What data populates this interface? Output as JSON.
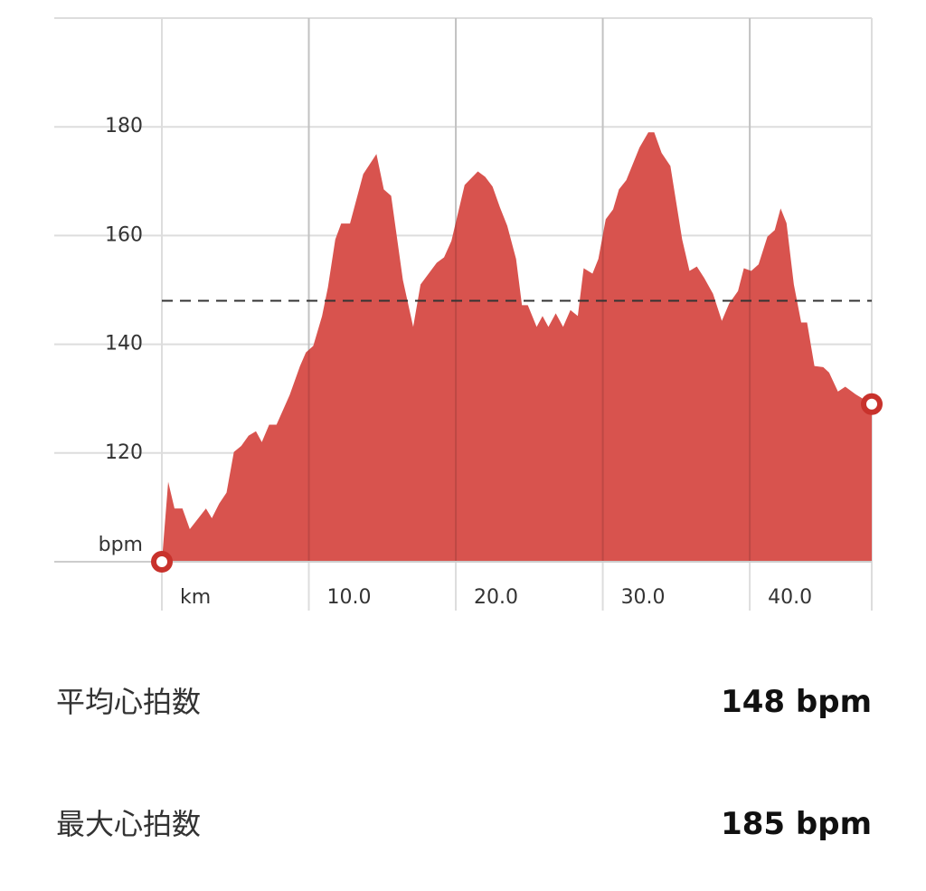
{
  "chart_data": {
    "type": "area",
    "series": [
      {
        "color": "#d8534e",
        "x": [
          0,
          0.43,
          0.86,
          1.4,
          1.9,
          3.0,
          3.4,
          3.9,
          4.4,
          4.9,
          5.4,
          5.9,
          6.4,
          6.8,
          7.3,
          7.8,
          8.7,
          9.4,
          9.8,
          10.3,
          10.9,
          11.3,
          11.8,
          12.2,
          12.8,
          13.7,
          14.6,
          15.1,
          15.6,
          16.4,
          17.1,
          17.6,
          18.7,
          19.2,
          19.7,
          20.6,
          21.5,
          22.0,
          22.5,
          23.0,
          23.5,
          24.1,
          24.5,
          24.9,
          25.5,
          25.9,
          26.3,
          26.8,
          27.3,
          27.8,
          28.3,
          28.7,
          29.3,
          29.7,
          30.2,
          30.7,
          31.1,
          31.6,
          32.5,
          33.1,
          33.5,
          34.0,
          34.6,
          35.4,
          35.9,
          36.4,
          36.9,
          37.5,
          38.1,
          38.6,
          39.2,
          39.6,
          40.1,
          40.6,
          41.2,
          41.7,
          42.1,
          42.5,
          43.0,
          43.5,
          43.9,
          44.4,
          45.0,
          45.4,
          46.0,
          46.5,
          47.2,
          48.3
        ],
        "values": [
          100,
          114.7,
          109.8,
          109.8,
          106,
          109.8,
          108,
          110.7,
          112.7,
          120.2,
          121.3,
          123.2,
          124,
          122,
          125.2,
          125.2,
          130.7,
          136,
          138.5,
          139.7,
          145.2,
          150.5,
          159.3,
          162.2,
          162.2,
          171.3,
          175,
          168.5,
          167.3,
          151.8,
          143.2,
          151,
          155,
          156,
          159,
          169.3,
          171.8,
          170.8,
          169,
          165.2,
          161.8,
          155.7,
          147.2,
          147.2,
          143.2,
          145.2,
          143.2,
          145.7,
          143.2,
          146.3,
          145.2,
          154,
          153,
          155.7,
          163,
          164.8,
          168.5,
          170.2,
          176.2,
          179,
          179,
          175.2,
          172.8,
          159.3,
          153.5,
          154.3,
          152.2,
          149.3,
          144.3,
          147.5,
          149.8,
          154,
          153.5,
          154.7,
          159.8,
          161,
          165,
          162.3,
          151,
          144,
          144,
          136,
          135.8,
          134.8,
          131.3,
          132.2,
          130.8,
          129
        ]
      }
    ],
    "average": 148,
    "xlim": [
      0,
      48.3
    ],
    "ylim": [
      100,
      200
    ],
    "xticks": [
      {
        "value": 0,
        "label": "km"
      },
      {
        "value": 10,
        "label": "10.0"
      },
      {
        "value": 20,
        "label": "20.0"
      },
      {
        "value": 30,
        "label": "30.0"
      },
      {
        "value": 40,
        "label": "40.0"
      }
    ],
    "yticks": [
      {
        "value": 100,
        "label": "bpm"
      },
      120,
      140,
      160,
      180
    ],
    "grid": true
  },
  "stats": [
    {
      "label": "平均心拍数",
      "value": "148 bpm"
    },
    {
      "label": "最大心拍数",
      "value": "185 bpm"
    }
  ]
}
